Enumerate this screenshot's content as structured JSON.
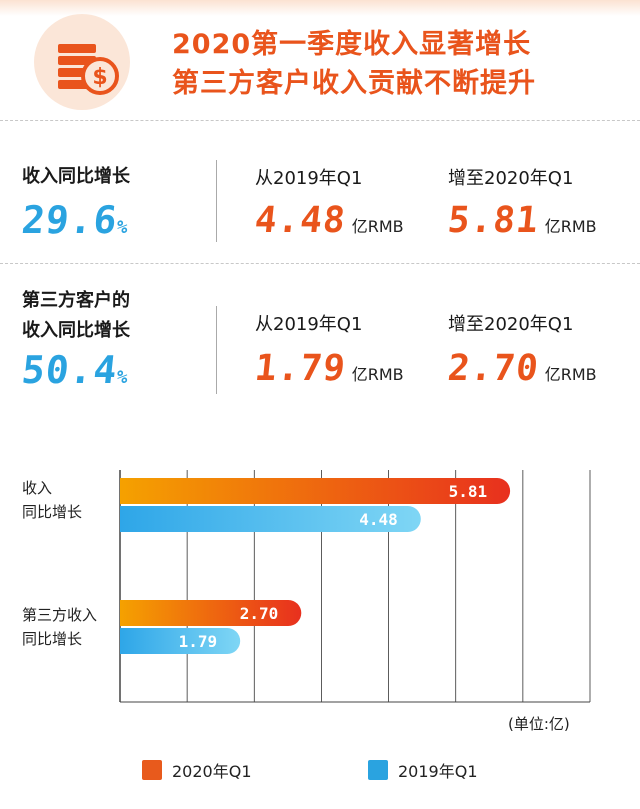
{
  "header": {
    "title_line1": "2020第一季度收入显著增长",
    "title_line2": "第三方客户收入贡献不断提升",
    "icon": "coins-dollar-icon"
  },
  "metrics": [
    {
      "label_lines": [
        "收入同比增长"
      ],
      "percent": "29.6",
      "percent_unit": "%",
      "from_label": "从2019年Q1",
      "from_value": "4.48",
      "from_unit": "亿RMB",
      "to_label": "增至2020年Q1",
      "to_value": "5.81",
      "to_unit": "亿RMB"
    },
    {
      "label_lines": [
        "第三方客户的",
        "收入同比增长"
      ],
      "percent": "50.4",
      "percent_unit": "%",
      "from_label": "从2019年Q1",
      "from_value": "1.79",
      "from_unit": "亿RMB",
      "to_label": "增至2020年Q1",
      "to_value": "2.70",
      "to_unit": "亿RMB"
    }
  ],
  "colors": {
    "orange_accent": "#e9541c",
    "blue_accent": "#2aa3e0",
    "bar_2020_start": "#f5a100",
    "bar_2020_end": "#e8301e",
    "bar_2019_start": "#2ea6e8",
    "bar_2019_end": "#7fd6f5"
  },
  "chart_data": {
    "type": "bar",
    "orientation": "horizontal",
    "categories": [
      {
        "label_lines": [
          "收入",
          "同比增长"
        ]
      },
      {
        "label_lines": [
          "第三方收入",
          "同比增长"
        ]
      }
    ],
    "series": [
      {
        "name": "2020年Q1",
        "values": [
          5.81,
          2.7
        ],
        "labels": [
          "5.81",
          "2.70"
        ]
      },
      {
        "name": "2019年Q1",
        "values": [
          4.48,
          1.79
        ],
        "labels": [
          "4.48",
          "1.79"
        ]
      }
    ],
    "xlim": [
      0,
      7
    ],
    "unit_note": "(单位:亿)",
    "grid": true,
    "legend_position": "bottom"
  }
}
